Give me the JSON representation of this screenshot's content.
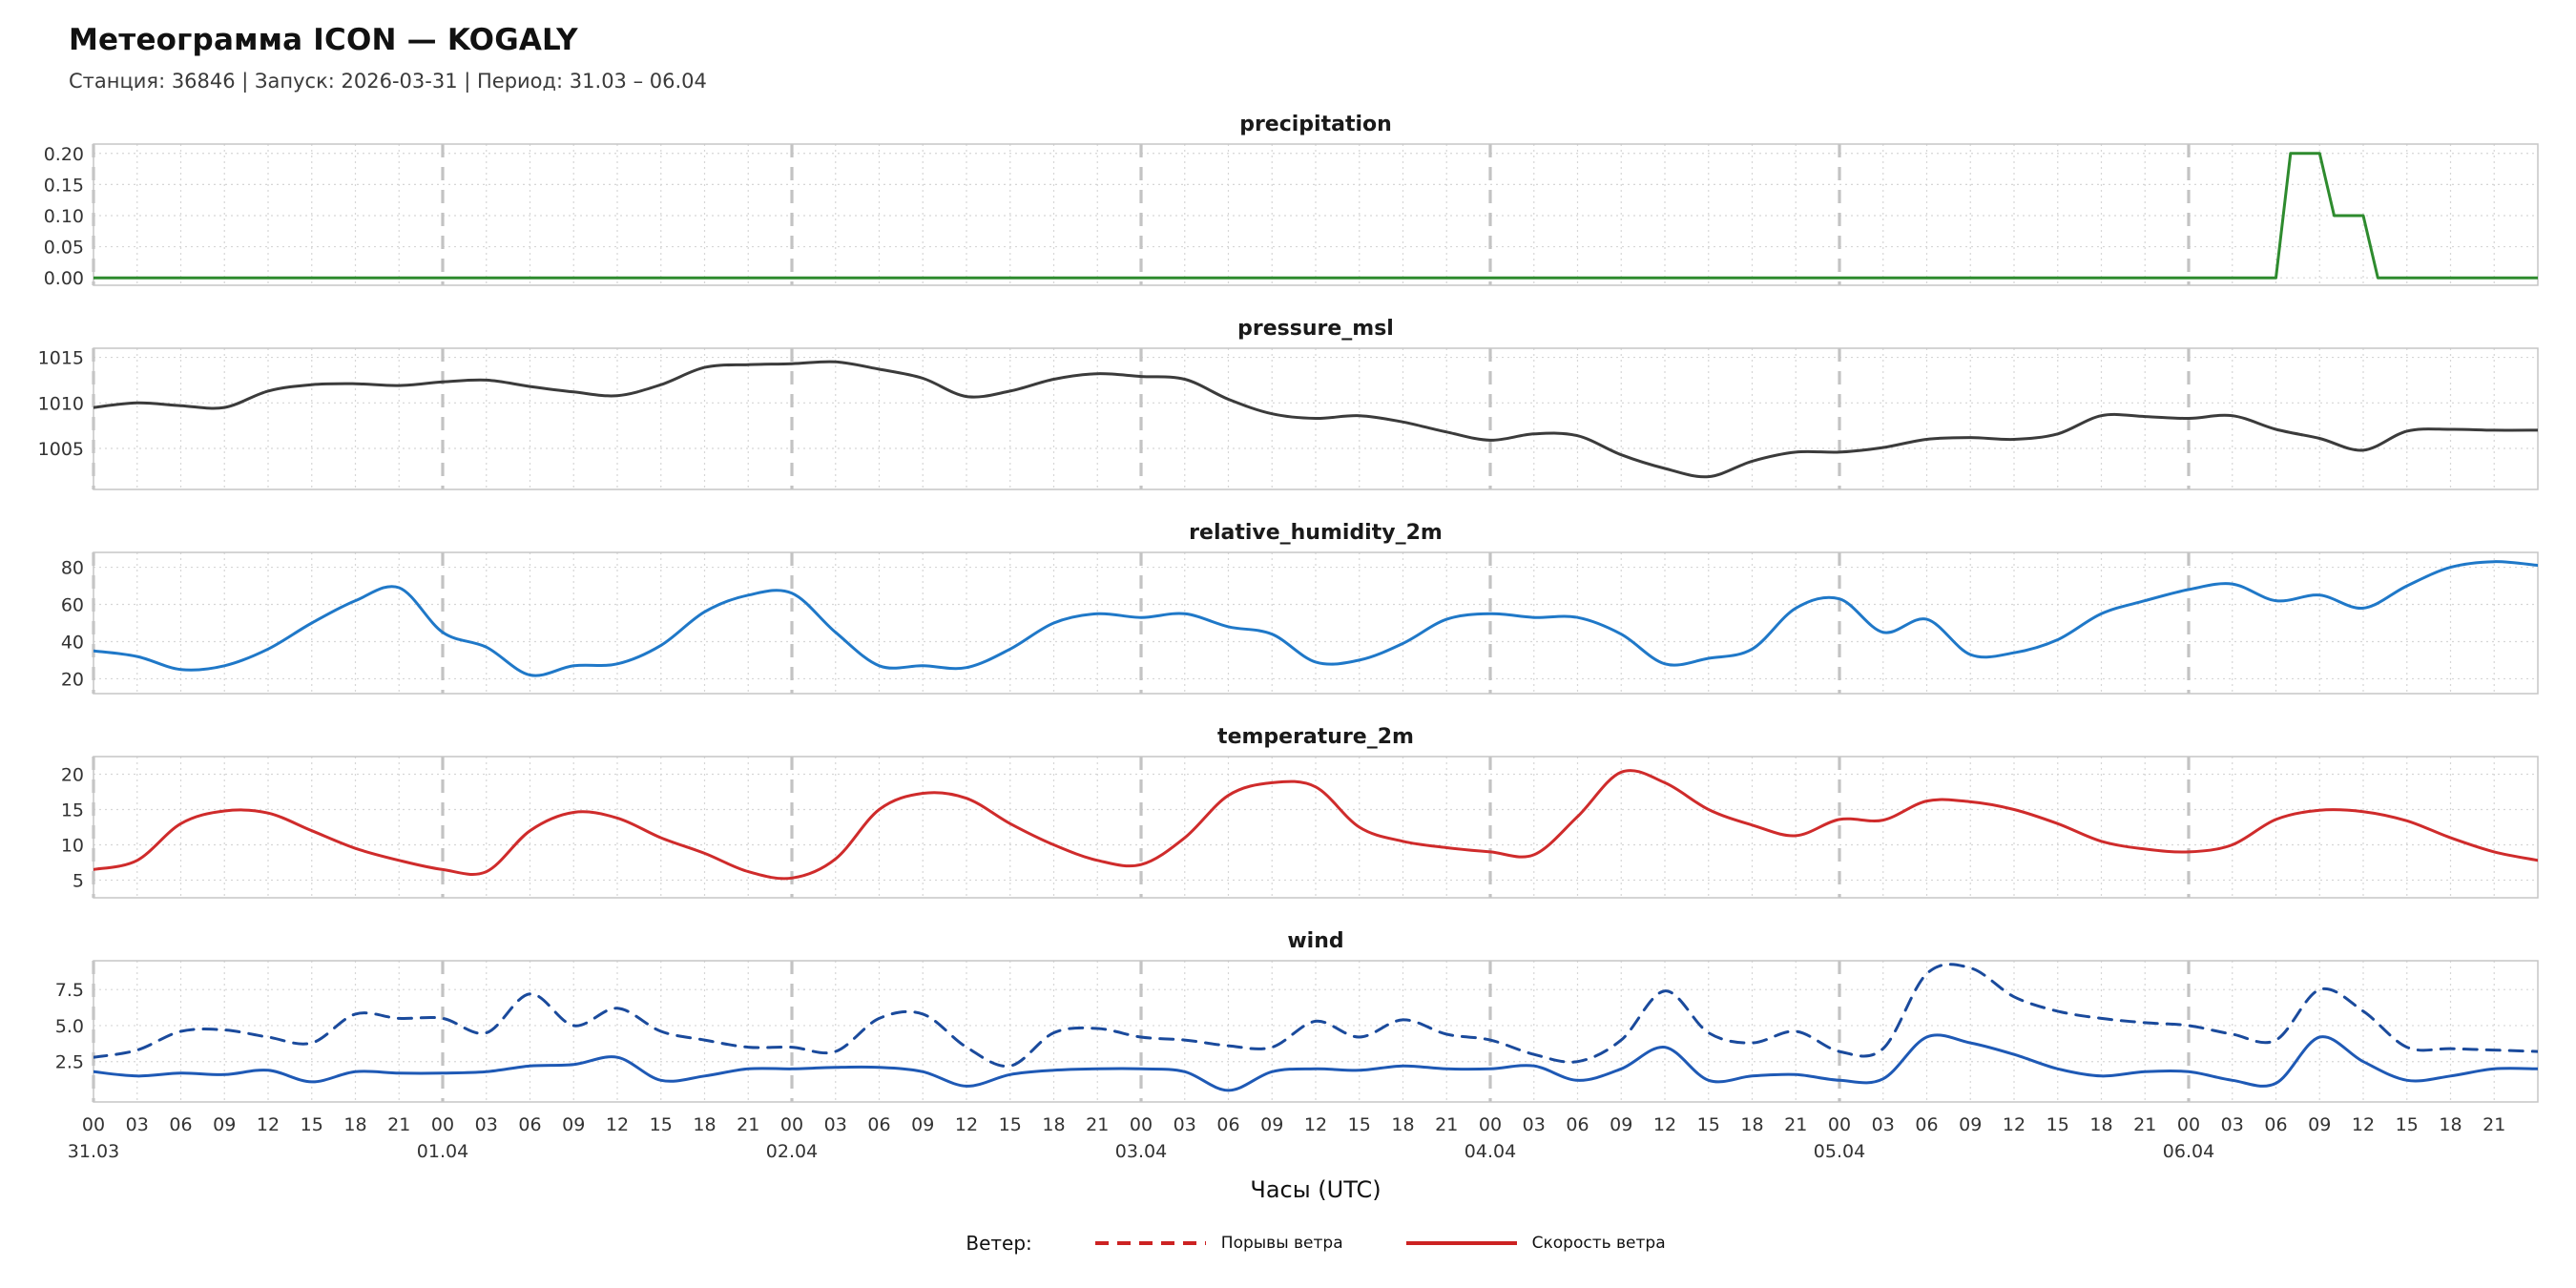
{
  "header": {
    "title": "Метеограмма ICON — KOGALY",
    "subtitle": "Станция: 36846  | Запуск: 2026-03-31  | Период: 31.03 – 06.04"
  },
  "legend": {
    "label": "Ветер:",
    "items": [
      {
        "name": "Порывы ветра",
        "style": "dashed",
        "color": "#cc2222"
      },
      {
        "name": "Скорость ветра",
        "style": "solid",
        "color": "#cc2222"
      }
    ]
  },
  "x_axis": {
    "min": 0,
    "max": 168,
    "tick_step": 3,
    "hour_tick_labels": [
      "00",
      "03",
      "06",
      "09",
      "12",
      "15",
      "18",
      "21"
    ],
    "day_labels": [
      "31.03",
      "01.04",
      "02.04",
      "03.04",
      "04.04",
      "05.04",
      "06.04"
    ],
    "xlabel": "Часы (UTC)"
  },
  "chart_data": [
    {
      "type": "line",
      "title": "precipitation",
      "ylim": [
        -0.012,
        0.215
      ],
      "yticks": [
        {
          "v": 0.0,
          "label": "0.00"
        },
        {
          "v": 0.05,
          "label": "0.05"
        },
        {
          "v": 0.1,
          "label": "0.10"
        },
        {
          "v": 0.15,
          "label": "0.15"
        },
        {
          "v": 0.2,
          "label": "0.20"
        }
      ],
      "series": [
        {
          "name": "precipitation",
          "color": "#2e8b2e",
          "dash": false,
          "smooth": false,
          "x": [
            0,
            150,
            151,
            153,
            154,
            156,
            157,
            168
          ],
          "y": [
            0,
            0,
            0.2,
            0.2,
            0.1,
            0.1,
            0,
            0
          ]
        }
      ]
    },
    {
      "type": "line",
      "title": "pressure_msl",
      "ylim": [
        1000.5,
        1016.0
      ],
      "yticks": [
        {
          "v": 1005,
          "label": "1005"
        },
        {
          "v": 1010,
          "label": "1010"
        },
        {
          "v": 1015,
          "label": "1015"
        }
      ],
      "series": [
        {
          "name": "pressure_msl",
          "color": "#3b3b3b",
          "dash": false,
          "smooth": true,
          "x0": 0,
          "dx": 3,
          "y": [
            1009.5,
            1010.0,
            1009.7,
            1009.5,
            1011.3,
            1012.0,
            1012.1,
            1011.9,
            1012.3,
            1012.5,
            1011.8,
            1011.2,
            1010.8,
            1012.0,
            1013.9,
            1014.2,
            1014.3,
            1014.5,
            1013.7,
            1012.7,
            1010.7,
            1011.3,
            1012.6,
            1013.2,
            1012.9,
            1012.6,
            1010.4,
            1008.8,
            1008.3,
            1008.6,
            1007.9,
            1006.8,
            1005.9,
            1006.6,
            1006.4,
            1004.3,
            1002.8,
            1001.9,
            1003.6,
            1004.6,
            1004.6,
            1005.1,
            1006.0,
            1006.2,
            1006.0,
            1006.6,
            1008.6,
            1008.5,
            1008.3,
            1008.6,
            1007.1,
            1006.1,
            1004.8,
            1006.9,
            1007.1,
            1007.0,
            1007.0
          ]
        }
      ]
    },
    {
      "type": "line",
      "title": "relative_humidity_2m",
      "ylim": [
        12,
        88
      ],
      "yticks": [
        {
          "v": 20,
          "label": "20"
        },
        {
          "v": 40,
          "label": "40"
        },
        {
          "v": 60,
          "label": "60"
        },
        {
          "v": 80,
          "label": "80"
        }
      ],
      "series": [
        {
          "name": "relative_humidity_2m",
          "color": "#1f78c8",
          "dash": false,
          "smooth": true,
          "x0": 0,
          "dx": 3,
          "y": [
            35,
            32,
            25,
            27,
            36,
            50,
            62,
            69,
            45,
            37,
            22,
            27,
            28,
            38,
            56,
            65,
            66,
            45,
            27,
            27,
            26,
            36,
            50,
            55,
            53,
            55,
            48,
            44,
            29,
            30,
            39,
            52,
            55,
            53,
            53,
            44,
            28,
            31,
            36,
            58,
            63,
            45,
            52,
            33,
            34,
            41,
            55,
            62,
            68,
            71,
            62,
            65,
            58,
            70,
            80,
            83,
            81
          ]
        }
      ]
    },
    {
      "type": "line",
      "title": "temperature_2m",
      "ylim": [
        2.5,
        22.5
      ],
      "yticks": [
        {
          "v": 5,
          "label": "5"
        },
        {
          "v": 10,
          "label": "10"
        },
        {
          "v": 15,
          "label": "15"
        },
        {
          "v": 20,
          "label": "20"
        }
      ],
      "series": [
        {
          "name": "temperature_2m",
          "color": "#cf2b2b",
          "dash": false,
          "smooth": true,
          "x0": 0,
          "dx": 3,
          "y": [
            6.5,
            7.8,
            13.0,
            14.8,
            14.5,
            12.0,
            9.5,
            7.8,
            6.5,
            6.2,
            12.0,
            14.6,
            13.8,
            11.0,
            8.8,
            6.2,
            5.3,
            8.0,
            15.0,
            17.3,
            16.6,
            13.0,
            10.0,
            7.8,
            7.2,
            11.0,
            17.0,
            18.8,
            18.2,
            12.5,
            10.5,
            9.6,
            9.0,
            8.6,
            14.0,
            20.3,
            18.8,
            15.0,
            12.8,
            11.3,
            13.6,
            13.5,
            16.2,
            16.1,
            15.0,
            13.0,
            10.5,
            9.4,
            9.0,
            10.0,
            13.6,
            14.9,
            14.7,
            13.4,
            11.0,
            9.0,
            7.8
          ]
        }
      ]
    },
    {
      "type": "line",
      "title": "wind",
      "ylim": [
        -0.3,
        9.5
      ],
      "yticks": [
        {
          "v": 2.5,
          "label": "2.5"
        },
        {
          "v": 5.0,
          "label": "5.0"
        },
        {
          "v": 7.5,
          "label": "7.5"
        }
      ],
      "series": [
        {
          "name": "Порывы ветра",
          "color": "#1a4a9c",
          "dash": true,
          "smooth": true,
          "x0": 0,
          "dx": 3,
          "y": [
            2.8,
            3.3,
            4.6,
            4.7,
            4.2,
            3.8,
            5.8,
            5.5,
            5.5,
            4.5,
            7.2,
            5.0,
            6.2,
            4.6,
            4.0,
            3.5,
            3.5,
            3.2,
            5.5,
            5.8,
            3.5,
            2.2,
            4.5,
            4.8,
            4.2,
            4.0,
            3.6,
            3.5,
            5.3,
            4.2,
            5.4,
            4.4,
            4.0,
            3.0,
            2.5,
            4.0,
            7.4,
            4.5,
            3.8,
            4.6,
            3.2,
            3.4,
            8.6,
            9.0,
            7.0,
            6.0,
            5.5,
            5.2,
            5.0,
            4.4,
            4.0,
            7.5,
            6.0,
            3.5,
            3.4,
            3.3,
            3.2
          ]
        },
        {
          "name": "Скорость ветра",
          "color": "#1e59b5",
          "dash": false,
          "smooth": true,
          "x0": 0,
          "dx": 3,
          "y": [
            1.8,
            1.5,
            1.7,
            1.6,
            1.9,
            1.1,
            1.8,
            1.7,
            1.7,
            1.8,
            2.2,
            2.3,
            2.8,
            1.2,
            1.5,
            2.0,
            2.0,
            2.1,
            2.1,
            1.8,
            0.8,
            1.6,
            1.9,
            2.0,
            2.0,
            1.8,
            0.5,
            1.8,
            2.0,
            1.9,
            2.2,
            2.0,
            2.0,
            2.2,
            1.2,
            2.0,
            3.5,
            1.2,
            1.5,
            1.6,
            1.2,
            1.3,
            4.2,
            3.8,
            3.0,
            2.0,
            1.5,
            1.8,
            1.8,
            1.2,
            1.0,
            4.2,
            2.5,
            1.2,
            1.5,
            2.0,
            2.0
          ]
        }
      ]
    }
  ]
}
